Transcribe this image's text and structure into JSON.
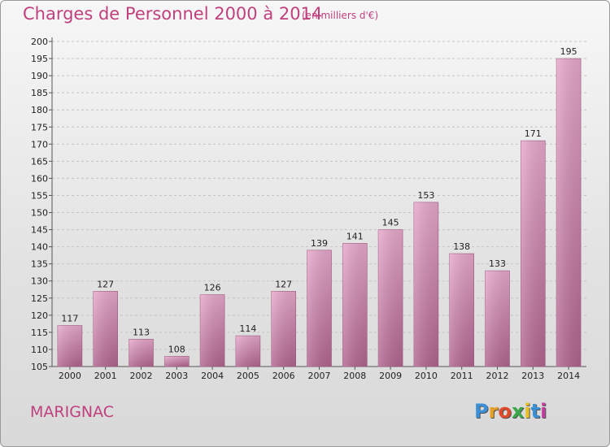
{
  "header": {
    "title": "Charges de Personnel 2000 à 2014",
    "subtitle": "(en milliers d'€)"
  },
  "footer": {
    "commune": "MARIGNAC",
    "logo": {
      "letters": [
        "P",
        "r",
        "o",
        "x",
        "i",
        "t",
        "i"
      ],
      "colors": [
        "#3b8fd6",
        "#e8a020",
        "#e04a2a",
        "#3aa84a",
        "#e8c020",
        "#3b8fd6",
        "#c040a0"
      ]
    }
  },
  "chart_data": {
    "type": "bar",
    "categories": [
      "2000",
      "2001",
      "2002",
      "2003",
      "2004",
      "2005",
      "2006",
      "2007",
      "2008",
      "2009",
      "2010",
      "2011",
      "2012",
      "2013",
      "2014"
    ],
    "values": [
      117,
      127,
      113,
      108,
      126,
      114,
      127,
      139,
      141,
      145,
      153,
      138,
      133,
      171,
      195
    ],
    "ylim": [
      105,
      200
    ],
    "yticks": [
      105,
      110,
      115,
      120,
      125,
      130,
      135,
      140,
      145,
      150,
      155,
      160,
      165,
      170,
      175,
      180,
      185,
      190,
      195,
      200
    ],
    "grid": true,
    "bar_color": "#d98db5"
  }
}
